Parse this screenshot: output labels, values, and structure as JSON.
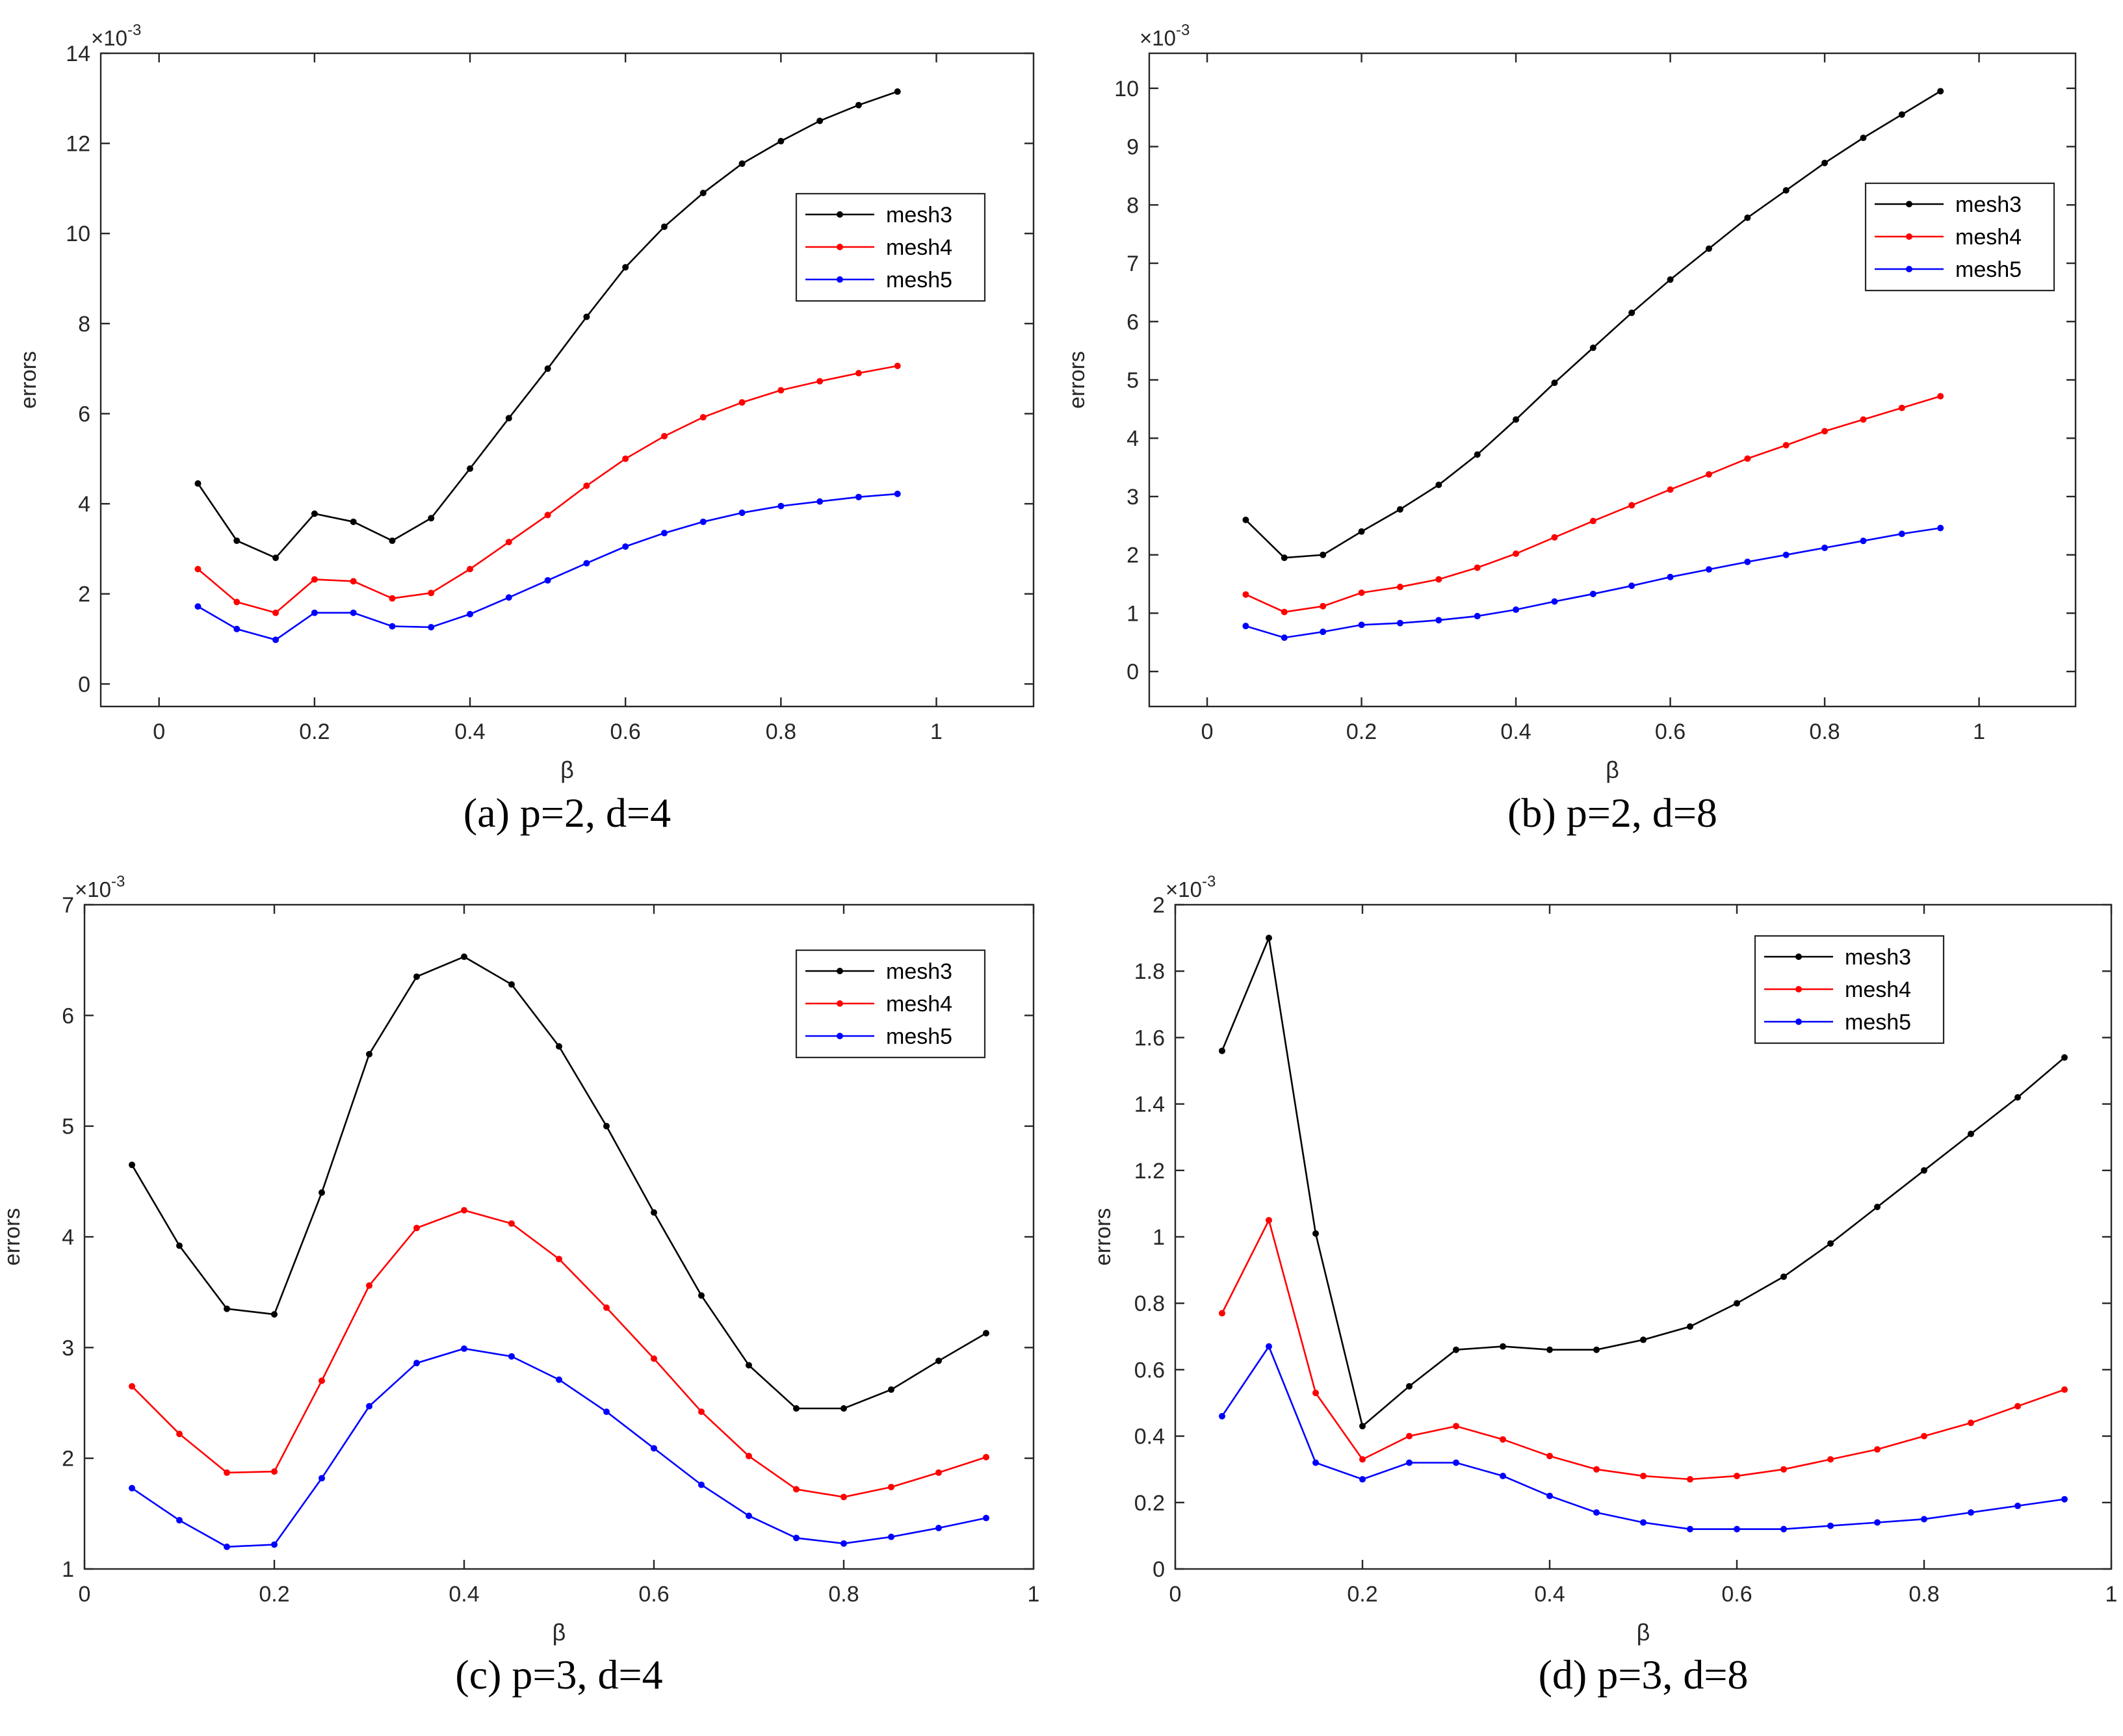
{
  "chart_data": [
    {
      "type": "line",
      "caption": "(a) p=2, d=4",
      "xlabel": "β",
      "ylabel": "errors",
      "exponent_base": "×10",
      "exponent_power": "-3",
      "xlim": [
        -0.075,
        1.125
      ],
      "ylim": [
        -0.5,
        14
      ],
      "xticks": [
        0,
        0.2,
        0.4,
        0.6,
        0.8,
        1
      ],
      "xtick_labels": [
        "0",
        "0.2",
        "0.4",
        "0.6",
        "0.8",
        "1"
      ],
      "yticks": [
        0,
        2,
        4,
        6,
        8,
        10,
        12,
        14
      ],
      "ytick_labels": [
        "0",
        "2",
        "4",
        "6",
        "8",
        "10",
        "12",
        "14"
      ],
      "legend_position": "upper-right",
      "x": [
        0.05,
        0.1,
        0.15,
        0.2,
        0.25,
        0.3,
        0.35,
        0.4,
        0.45,
        0.5,
        0.55,
        0.6,
        0.65,
        0.7,
        0.75,
        0.8,
        0.85,
        0.9,
        0.95
      ],
      "series": [
        {
          "name": "mesh3",
          "color": "#000000",
          "values": [
            4.45,
            3.18,
            2.8,
            3.78,
            3.6,
            3.18,
            3.68,
            4.78,
            5.9,
            7.0,
            8.15,
            9.25,
            10.15,
            10.9,
            11.55,
            12.05,
            12.5,
            12.85,
            13.15
          ]
        },
        {
          "name": "mesh4",
          "color": "#ff0000",
          "values": [
            2.55,
            1.82,
            1.58,
            2.32,
            2.28,
            1.9,
            2.02,
            2.55,
            3.15,
            3.75,
            4.4,
            5.0,
            5.5,
            5.92,
            6.25,
            6.52,
            6.72,
            6.9,
            7.06
          ]
        },
        {
          "name": "mesh5",
          "color": "#0000ff",
          "values": [
            1.72,
            1.22,
            0.98,
            1.58,
            1.58,
            1.28,
            1.26,
            1.55,
            1.92,
            2.3,
            2.68,
            3.05,
            3.35,
            3.6,
            3.8,
            3.95,
            4.05,
            4.15,
            4.22
          ]
        }
      ]
    },
    {
      "type": "line",
      "caption": "(b) p=2, d=8",
      "xlabel": "β",
      "ylabel": "errors",
      "exponent_base": "×10",
      "exponent_power": "-3",
      "xlim": [
        -0.075,
        1.125
      ],
      "ylim": [
        -0.6,
        10.6
      ],
      "xticks": [
        0,
        0.2,
        0.4,
        0.6,
        0.8,
        1
      ],
      "xtick_labels": [
        "0",
        "0.2",
        "0.4",
        "0.6",
        "0.8",
        "1"
      ],
      "yticks": [
        0,
        1,
        2,
        3,
        4,
        5,
        6,
        7,
        8,
        9,
        10
      ],
      "ytick_labels": [
        "0",
        "1",
        "2",
        "3",
        "4",
        "5",
        "6",
        "7",
        "8",
        "9",
        "10"
      ],
      "legend_position": "upper-right",
      "x": [
        0.05,
        0.1,
        0.15,
        0.2,
        0.25,
        0.3,
        0.35,
        0.4,
        0.45,
        0.5,
        0.55,
        0.6,
        0.65,
        0.7,
        0.75,
        0.8,
        0.85,
        0.9,
        0.95
      ],
      "series": [
        {
          "name": "mesh3",
          "color": "#000000",
          "values": [
            2.6,
            1.95,
            2.0,
            2.4,
            2.78,
            3.2,
            3.72,
            4.32,
            4.95,
            5.55,
            6.15,
            6.72,
            7.25,
            7.78,
            8.25,
            8.72,
            9.15,
            9.55,
            9.95
          ]
        },
        {
          "name": "mesh4",
          "color": "#ff0000",
          "values": [
            1.32,
            1.02,
            1.12,
            1.35,
            1.45,
            1.58,
            1.78,
            2.02,
            2.3,
            2.58,
            2.85,
            3.12,
            3.38,
            3.65,
            3.88,
            4.12,
            4.32,
            4.52,
            4.72
          ]
        },
        {
          "name": "mesh5",
          "color": "#0000ff",
          "values": [
            0.78,
            0.58,
            0.68,
            0.8,
            0.83,
            0.88,
            0.95,
            1.06,
            1.2,
            1.33,
            1.47,
            1.62,
            1.75,
            1.88,
            2.0,
            2.12,
            2.24,
            2.36,
            2.46
          ]
        }
      ]
    },
    {
      "type": "line",
      "caption": "(c) p=3, d=4",
      "xlabel": "β",
      "ylabel": "errors",
      "exponent_base": "×10",
      "exponent_power": "-3",
      "xlim": [
        0,
        1
      ],
      "ylim": [
        1,
        7
      ],
      "xticks": [
        0,
        0.2,
        0.4,
        0.6,
        0.8,
        1
      ],
      "xtick_labels": [
        "0",
        "0.2",
        "0.4",
        "0.6",
        "0.8",
        "1"
      ],
      "yticks": [
        1,
        2,
        3,
        4,
        5,
        6,
        7
      ],
      "ytick_labels": [
        "1",
        "2",
        "3",
        "4",
        "5",
        "6",
        "7"
      ],
      "legend_position": "upper-right",
      "x": [
        0.05,
        0.1,
        0.15,
        0.2,
        0.25,
        0.3,
        0.35,
        0.4,
        0.45,
        0.5,
        0.55,
        0.6,
        0.65,
        0.7,
        0.75,
        0.8,
        0.85,
        0.9,
        0.95
      ],
      "series": [
        {
          "name": "mesh3",
          "color": "#000000",
          "values": [
            4.65,
            3.92,
            3.35,
            3.3,
            4.4,
            5.65,
            6.35,
            6.53,
            6.28,
            5.72,
            5.0,
            4.22,
            3.47,
            2.84,
            2.45,
            2.45,
            2.62,
            2.88,
            3.13
          ]
        },
        {
          "name": "mesh4",
          "color": "#ff0000",
          "values": [
            2.65,
            2.22,
            1.87,
            1.88,
            2.7,
            3.56,
            4.08,
            4.24,
            4.12,
            3.8,
            3.36,
            2.9,
            2.42,
            2.02,
            1.72,
            1.65,
            1.74,
            1.87,
            2.01
          ]
        },
        {
          "name": "mesh5",
          "color": "#0000ff",
          "values": [
            1.73,
            1.44,
            1.2,
            1.22,
            1.82,
            2.47,
            2.86,
            2.99,
            2.92,
            2.71,
            2.42,
            2.09,
            1.76,
            1.48,
            1.28,
            1.23,
            1.29,
            1.37,
            1.46
          ]
        }
      ]
    },
    {
      "type": "line",
      "caption": "(d) p=3, d=8",
      "xlabel": "β",
      "ylabel": "errors",
      "exponent_base": "×10",
      "exponent_power": "-3",
      "xlim": [
        0,
        1
      ],
      "ylim": [
        0,
        2
      ],
      "xticks": [
        0,
        0.2,
        0.4,
        0.6,
        0.8,
        1
      ],
      "xtick_labels": [
        "0",
        "0.2",
        "0.4",
        "0.6",
        "0.8",
        "1"
      ],
      "yticks": [
        0,
        0.2,
        0.4,
        0.6,
        0.8,
        1,
        1.2,
        1.4,
        1.6,
        1.8,
        2
      ],
      "ytick_labels": [
        "0",
        "0.2",
        "0.4",
        "0.6",
        "0.8",
        "1",
        "1.2",
        "1.4",
        "1.6",
        "1.8",
        "2"
      ],
      "legend_position": "upper-right",
      "x": [
        0.05,
        0.1,
        0.15,
        0.2,
        0.25,
        0.3,
        0.35,
        0.4,
        0.45,
        0.5,
        0.55,
        0.6,
        0.65,
        0.7,
        0.75,
        0.8,
        0.85,
        0.9,
        0.95
      ],
      "series": [
        {
          "name": "mesh3",
          "color": "#000000",
          "values": [
            1.56,
            1.9,
            1.01,
            0.43,
            0.55,
            0.66,
            0.67,
            0.66,
            0.66,
            0.69,
            0.73,
            0.8,
            0.88,
            0.98,
            1.09,
            1.2,
            1.31,
            1.42,
            1.54
          ]
        },
        {
          "name": "mesh4",
          "color": "#ff0000",
          "values": [
            0.77,
            1.05,
            0.53,
            0.33,
            0.4,
            0.43,
            0.39,
            0.34,
            0.3,
            0.28,
            0.27,
            0.28,
            0.3,
            0.33,
            0.36,
            0.4,
            0.44,
            0.49,
            0.54
          ]
        },
        {
          "name": "mesh5",
          "color": "#0000ff",
          "values": [
            0.46,
            0.67,
            0.32,
            0.27,
            0.32,
            0.32,
            0.28,
            0.22,
            0.17,
            0.14,
            0.12,
            0.12,
            0.12,
            0.13,
            0.14,
            0.15,
            0.17,
            0.19,
            0.21
          ]
        }
      ]
    }
  ]
}
